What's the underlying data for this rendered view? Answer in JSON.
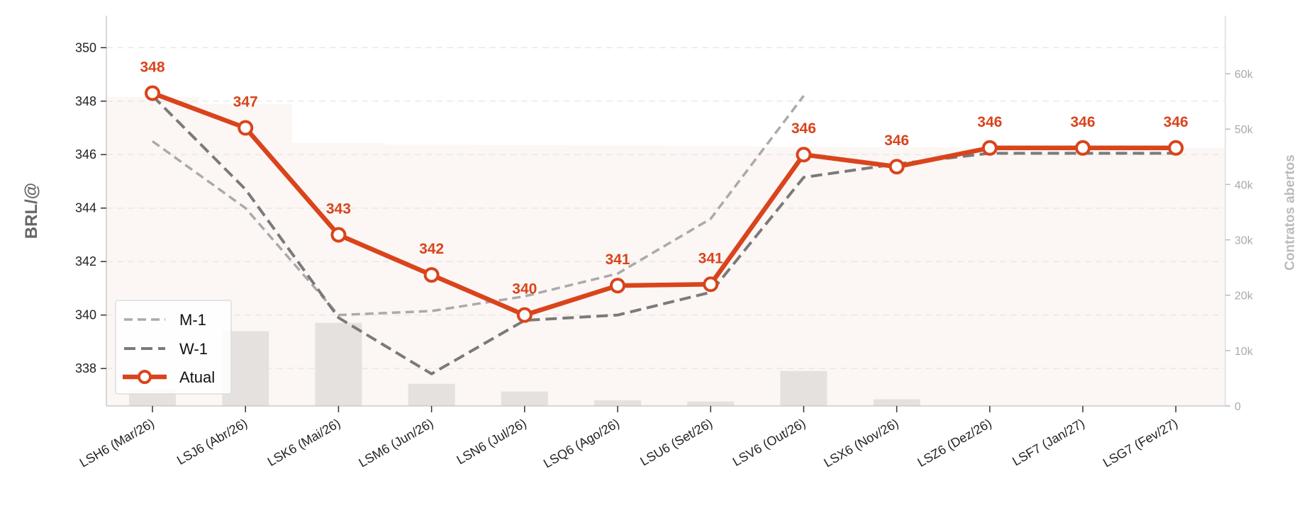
{
  "chart_data": {
    "type": "line",
    "categories": [
      "LSH6 (Mar/26)",
      "LSJ6 (Abr/26)",
      "LSK6 (Mai/26)",
      "LSM6 (Jun/26)",
      "LSN6 (Jul/26)",
      "LSQ6 (Ago/26)",
      "LSU6 (Set/26)",
      "LSV6 (Out/26)",
      "LSX6 (Nov/26)",
      "LSZ6 (Dez/26)",
      "LSF7 (Jan/27)",
      "LSG7 (Fev/27)"
    ],
    "ylabel": "BRL/@",
    "y2label": "Contratos abertos",
    "ylim": [
      336.6,
      351.2
    ],
    "yticks": [
      338,
      340,
      342,
      344,
      346,
      348,
      350
    ],
    "y2lim": [
      0,
      70500
    ],
    "y2ticks": [
      0,
      10000,
      20000,
      30000,
      40000,
      50000,
      60000
    ],
    "y2tick_labels": [
      "0",
      "10k",
      "20k",
      "30k",
      "40k",
      "50k",
      "60k"
    ],
    "grid": true,
    "legend_position": "lower-left",
    "series": [
      {
        "name": "M-1",
        "style": "dashed-thin",
        "color": "#aaaaaa",
        "values": [
          346.5,
          344.0,
          340.0,
          340.15,
          340.7,
          341.55,
          343.6,
          348.2,
          null,
          null,
          null,
          null
        ]
      },
      {
        "name": "W-1",
        "style": "dashed-thick",
        "color": "#7a7a7a",
        "values": [
          348.2,
          344.7,
          339.9,
          337.8,
          339.8,
          340.0,
          340.85,
          345.15,
          345.65,
          346.05,
          346.05,
          346.05
        ]
      },
      {
        "name": "Atual",
        "style": "solid-markers",
        "color": "#d9441c",
        "values": [
          348.3,
          347.0,
          343.0,
          341.5,
          340.0,
          341.1,
          341.15,
          346.0,
          345.55,
          346.25,
          346.25,
          346.25
        ],
        "data_labels": [
          "348",
          "347",
          "343",
          "342",
          "340",
          "341",
          "341",
          "346",
          "346",
          "346",
          "346",
          "346"
        ]
      }
    ],
    "bars": {
      "axis": "right",
      "color": "#e5e1df",
      "values": [
        3000,
        13500,
        15000,
        4000,
        2600,
        1000,
        800,
        6300,
        1200,
        0,
        0,
        0
      ]
    },
    "area": {
      "axis": "right",
      "color": "#fcf6f4",
      "values": [
        55800,
        54500,
        47500,
        47200,
        47100,
        47000,
        46900,
        46800,
        46700,
        46600,
        46600,
        46600
      ]
    }
  }
}
